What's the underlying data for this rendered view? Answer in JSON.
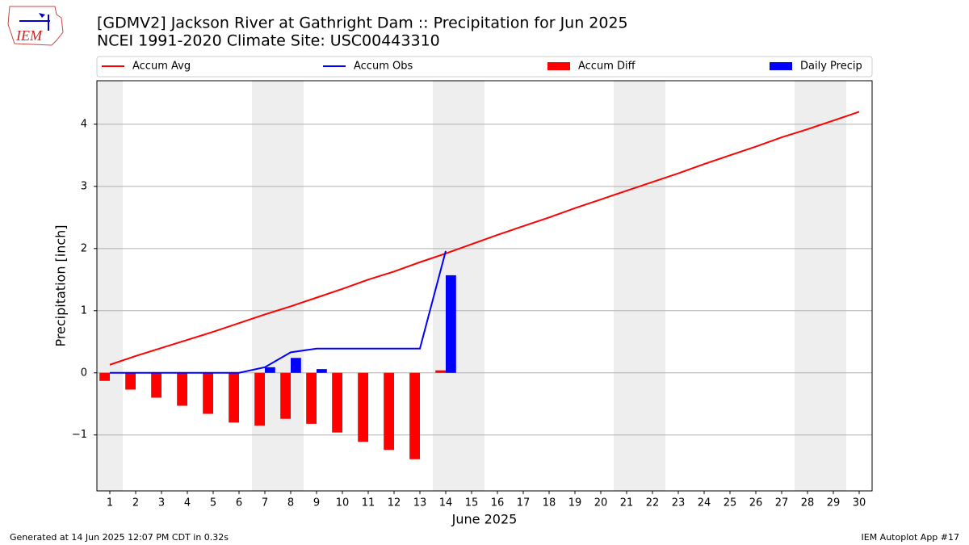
{
  "chart_data": {
    "type": "bar_line",
    "title": "[GDMV2] Jackson River at Gathright Dam :: Precipitation for Jun 2025",
    "subtitle": "NCEI 1991-2020 Climate Site: USC00443310",
    "logo_text": "IEM",
    "x_label": "June 2025",
    "y_label": "Precipitation [inch]",
    "footer_left": "Generated at 14 Jun 2025 12:07 PM CDT in 0.32s",
    "footer_right": "IEM Autoplot App #17",
    "x": [
      1,
      2,
      3,
      4,
      5,
      6,
      7,
      8,
      9,
      10,
      11,
      12,
      13,
      14,
      15,
      16,
      17,
      18,
      19,
      20,
      21,
      22,
      23,
      24,
      25,
      26,
      27,
      28,
      29,
      30
    ],
    "xlim": [
      0.5,
      30.5
    ],
    "xticks": [
      1,
      2,
      3,
      4,
      5,
      6,
      7,
      8,
      9,
      10,
      11,
      12,
      13,
      14,
      15,
      16,
      17,
      18,
      19,
      20,
      21,
      22,
      23,
      24,
      25,
      26,
      27,
      28,
      29,
      30
    ],
    "ylim": [
      -1.9,
      4.7
    ],
    "yticks": [
      {
        "value": -1,
        "label": "−1"
      },
      0,
      1,
      2,
      3,
      4
    ],
    "grid": true,
    "shaded_spans": [
      [
        0.5,
        1.5
      ],
      [
        6.5,
        8.5
      ],
      [
        13.5,
        15.5
      ],
      [
        20.5,
        22.5
      ],
      [
        27.5,
        29.5
      ]
    ],
    "shade_color": "#eeeeee",
    "legend_position": "top",
    "series": [
      {
        "name": "Accum Avg",
        "kind": "line",
        "color": "#ff0000",
        "values": [
          0.13,
          0.27,
          0.4,
          0.53,
          0.66,
          0.8,
          0.94,
          1.07,
          1.21,
          1.35,
          1.5,
          1.63,
          1.78,
          1.92,
          2.07,
          2.22,
          2.36,
          2.5,
          2.65,
          2.79,
          2.93,
          3.07,
          3.21,
          3.36,
          3.5,
          3.64,
          3.79,
          3.92,
          4.06,
          4.2
        ]
      },
      {
        "name": "Accum Obs",
        "kind": "line",
        "color": "#0000ff",
        "values": [
          0,
          0,
          0,
          0,
          0,
          0,
          0.09,
          0.33,
          0.39,
          0.39,
          0.39,
          0.39,
          0.39,
          1.96,
          null,
          null,
          null,
          null,
          null,
          null,
          null,
          null,
          null,
          null,
          null,
          null,
          null,
          null,
          null,
          null
        ]
      },
      {
        "name": "Accum Diff",
        "kind": "bar",
        "offset": -0.2,
        "color": "#ff0000",
        "values": [
          -0.13,
          -0.27,
          -0.4,
          -0.53,
          -0.66,
          -0.8,
          -0.85,
          -0.74,
          -0.82,
          -0.96,
          -1.11,
          -1.24,
          -1.39,
          0.04,
          null,
          null,
          null,
          null,
          null,
          null,
          null,
          null,
          null,
          null,
          null,
          null,
          null,
          null,
          null,
          null
        ]
      },
      {
        "name": "Daily Precip",
        "kind": "bar",
        "offset": 0.2,
        "color": "#0000ff",
        "values": [
          0,
          0,
          0,
          0,
          0,
          0,
          0.09,
          0.24,
          0.06,
          0,
          0,
          0,
          0,
          1.57,
          null,
          null,
          null,
          null,
          null,
          null,
          null,
          null,
          null,
          null,
          null,
          null,
          null,
          null,
          null,
          null
        ]
      }
    ]
  }
}
